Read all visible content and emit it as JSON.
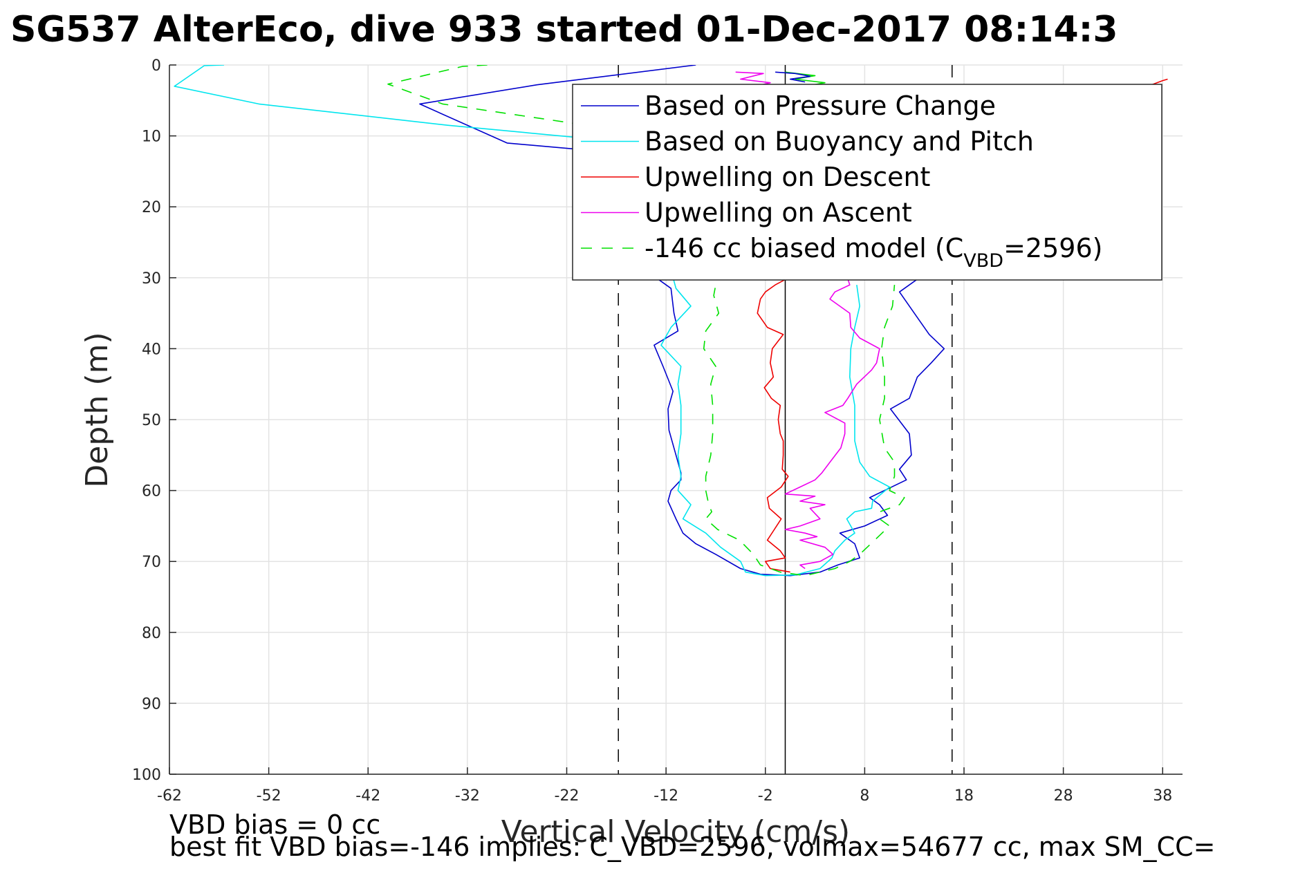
{
  "chart_data": {
    "type": "line",
    "title": "SG537 AlterEco, dive 933 started 01-Dec-2017 08:14:3",
    "xlabel": "Vertical Velocity (cm/s)",
    "ylabel": "Depth (m)",
    "xlim": [
      -62,
      40
    ],
    "ylim": [
      0,
      100
    ],
    "y_reversed": true,
    "xticks": [
      -62,
      -52,
      -42,
      -32,
      -22,
      -12,
      -2,
      8,
      18,
      28,
      38
    ],
    "yticks": [
      0,
      10,
      20,
      30,
      40,
      50,
      60,
      70,
      80,
      90,
      100
    ],
    "grid": true,
    "legend_position": "top-right",
    "zero_line_x": 0,
    "vertical_dashed_lines_x": [
      -16.8,
      16.8
    ],
    "legend": [
      {
        "label": "Based on Pressure Change",
        "color": "#0000cc",
        "style": "solid"
      },
      {
        "label": "Based on Buoyancy and Pitch",
        "color": "#00e5ee",
        "style": "solid"
      },
      {
        "label": "Upwelling on Descent",
        "color": "#ee0000",
        "style": "solid"
      },
      {
        "label": "Upwelling on Ascent",
        "color": "#ee00ee",
        "style": "solid"
      },
      {
        "label": "-146 cc biased model (C",
        "label_sub": "VBD",
        "label_tail": "=2596)",
        "color": "#00e000",
        "style": "dashed"
      }
    ],
    "series": [
      {
        "name": "Based on Pressure Change",
        "color": "#0000cc",
        "dash": "",
        "points": [
          [
            -9,
            0
          ],
          [
            -25,
            2.8
          ],
          [
            -36.8,
            5.5
          ],
          [
            -28,
            11
          ],
          [
            -20,
            12
          ],
          [
            -13,
            30
          ],
          [
            -11.5,
            31.5
          ],
          [
            -11.2,
            35
          ],
          [
            -10.8,
            37.5
          ],
          [
            -13.2,
            39.5
          ],
          [
            -12.3,
            42.5
          ],
          [
            -11.3,
            46
          ],
          [
            -11.8,
            48.5
          ],
          [
            -11.7,
            51.5
          ],
          [
            -11,
            55
          ],
          [
            -10.5,
            57.5
          ],
          [
            -10.5,
            58.5
          ],
          [
            -11.5,
            60
          ],
          [
            -11.8,
            61.5
          ],
          [
            -11,
            64
          ],
          [
            -10.3,
            66
          ],
          [
            -9,
            67.5
          ],
          [
            -7,
            69
          ],
          [
            -4.5,
            71
          ],
          [
            -2.5,
            71.8
          ],
          [
            0.5,
            72
          ],
          [
            3.5,
            71.5
          ],
          [
            5.3,
            70.5
          ],
          [
            7.5,
            69.5
          ],
          [
            7,
            67.5
          ],
          [
            5.5,
            66
          ],
          [
            8,
            65
          ],
          [
            10.3,
            63.5
          ],
          [
            9.5,
            62
          ],
          [
            8.5,
            61
          ],
          [
            12.2,
            58.5
          ],
          [
            11.5,
            57
          ],
          [
            12.7,
            55
          ],
          [
            12.5,
            52
          ],
          [
            10.6,
            48.5
          ],
          [
            12.5,
            47
          ],
          [
            13.3,
            44
          ],
          [
            14.7,
            42
          ],
          [
            16,
            40
          ],
          [
            14.5,
            38
          ],
          [
            13.5,
            36
          ],
          [
            12.5,
            34
          ],
          [
            11.5,
            32
          ],
          [
            13.5,
            30
          ]
        ]
      },
      {
        "name": "Based on Buoyancy and Pitch",
        "color": "#00e5ee",
        "dash": "",
        "points": [
          [
            -56.5,
            0
          ],
          [
            -58.5,
            0.1
          ],
          [
            -61.5,
            3
          ],
          [
            -53,
            5.5
          ],
          [
            -34,
            8.5
          ],
          [
            -15,
            11
          ],
          [
            -11,
            31.5
          ],
          [
            -9.5,
            34
          ],
          [
            -11.5,
            37
          ],
          [
            -12.5,
            39.5
          ],
          [
            -10.5,
            42.5
          ],
          [
            -10.8,
            45
          ],
          [
            -10.5,
            48
          ],
          [
            -10.5,
            52
          ],
          [
            -10.8,
            55
          ],
          [
            -10.5,
            58
          ],
          [
            -10.8,
            60
          ],
          [
            -9.5,
            62
          ],
          [
            -10.3,
            64
          ],
          [
            -8,
            66
          ],
          [
            -6.5,
            68
          ],
          [
            -4.5,
            70
          ],
          [
            -4,
            71.5
          ],
          [
            -2,
            72
          ],
          [
            1,
            71.9
          ],
          [
            3.5,
            71
          ],
          [
            4.7,
            69.5
          ],
          [
            5,
            68.5
          ],
          [
            6,
            67
          ],
          [
            7,
            66
          ],
          [
            6.2,
            64
          ],
          [
            7,
            63
          ],
          [
            8.7,
            62.5
          ],
          [
            8.8,
            61.5
          ],
          [
            10.5,
            59.5
          ],
          [
            8.5,
            58
          ],
          [
            7.5,
            56
          ],
          [
            7,
            53
          ],
          [
            7,
            48
          ],
          [
            6.5,
            44
          ],
          [
            6.6,
            40
          ],
          [
            7,
            37
          ],
          [
            7.5,
            34
          ],
          [
            7.2,
            31
          ]
        ]
      },
      {
        "name": "Upwelling on Descent",
        "color": "#ee0000",
        "dash": "",
        "points": [
          [
            38.5,
            2
          ],
          [
            38,
            2.2
          ],
          [
            36.5,
            3
          ],
          [
            -1,
            31
          ],
          [
            -2,
            32
          ],
          [
            -2.5,
            33
          ],
          [
            -2.8,
            35
          ],
          [
            -1.8,
            37
          ],
          [
            -0.2,
            38
          ],
          [
            -1.3,
            40
          ],
          [
            -1.5,
            42
          ],
          [
            -1.2,
            44
          ],
          [
            -2.1,
            45.5
          ],
          [
            -1.4,
            47
          ],
          [
            -0.5,
            48
          ],
          [
            -0.7,
            50
          ],
          [
            -0.5,
            52
          ],
          [
            -0.2,
            53
          ],
          [
            -0.2,
            55
          ],
          [
            -0.3,
            57
          ],
          [
            0.3,
            58
          ],
          [
            -0.4,
            59.5
          ],
          [
            -1.8,
            61
          ],
          [
            -1.6,
            62.5
          ],
          [
            -0.4,
            64
          ],
          [
            -1.1,
            65.5
          ],
          [
            -1.8,
            67
          ],
          [
            -0.5,
            68.5
          ],
          [
            0,
            69.5
          ],
          [
            -2,
            70
          ],
          [
            -1.5,
            71
          ],
          [
            0.5,
            71.5
          ]
        ]
      },
      {
        "name": "Upwelling on Ascent",
        "color": "#ee00ee",
        "dash": "",
        "points": [
          [
            -5,
            1
          ],
          [
            -2.2,
            1.2
          ],
          [
            -4.5,
            2
          ],
          [
            -1.5,
            2.5
          ],
          [
            -3,
            3
          ],
          [
            0,
            3.2
          ],
          [
            6.5,
            31
          ],
          [
            5,
            32
          ],
          [
            4.5,
            33
          ],
          [
            6.5,
            35
          ],
          [
            6.6,
            37
          ],
          [
            7.5,
            38.5
          ],
          [
            9.5,
            40
          ],
          [
            9.2,
            42
          ],
          [
            8.7,
            43
          ],
          [
            7.2,
            45
          ],
          [
            6.3,
            47
          ],
          [
            5.8,
            48
          ],
          [
            4,
            49
          ],
          [
            6,
            50.5
          ],
          [
            6,
            52
          ],
          [
            5.6,
            54
          ],
          [
            4.5,
            56
          ],
          [
            3.7,
            57.5
          ],
          [
            3,
            58.5
          ],
          [
            1.5,
            59.5
          ],
          [
            0,
            60.5
          ],
          [
            3,
            60.8
          ],
          [
            1.5,
            61.5
          ],
          [
            4,
            62
          ],
          [
            2.5,
            62.5
          ],
          [
            3.5,
            64
          ],
          [
            1.5,
            65
          ],
          [
            0,
            65.5
          ],
          [
            2,
            66
          ],
          [
            3.2,
            66.5
          ],
          [
            1.5,
            67
          ],
          [
            4,
            68
          ],
          [
            4.8,
            69
          ],
          [
            3.5,
            70
          ],
          [
            1.5,
            70.5
          ],
          [
            2,
            71
          ]
        ]
      },
      {
        "name": "-146 cc biased model",
        "color": "#00e000",
        "dash": "15 13",
        "points": [
          [
            -30,
            0
          ],
          [
            -32.5,
            0.2
          ],
          [
            -40,
            2.7
          ],
          [
            -34.5,
            5.5
          ],
          [
            -20,
            8.5
          ],
          [
            -12.5,
            10
          ],
          [
            -7,
            31
          ],
          [
            -7.2,
            32.5
          ],
          [
            -6.7,
            35
          ],
          [
            -8,
            37.5
          ],
          [
            -8.2,
            40
          ],
          [
            -7,
            42.5
          ],
          [
            -7.5,
            45
          ],
          [
            -7.3,
            48
          ],
          [
            -7.3,
            52
          ],
          [
            -7.5,
            55
          ],
          [
            -8,
            58
          ],
          [
            -8,
            60
          ],
          [
            -7.7,
            62
          ],
          [
            -7.4,
            63
          ],
          [
            -8,
            64
          ],
          [
            -6.8,
            65.5
          ],
          [
            -4.6,
            67
          ],
          [
            -3.2,
            69
          ],
          [
            -2.5,
            70.5
          ],
          [
            -0.5,
            71.5
          ],
          [
            2,
            72
          ],
          [
            5,
            71
          ],
          [
            6.5,
            70
          ],
          [
            7.5,
            69
          ],
          [
            9,
            67
          ],
          [
            10.5,
            65
          ],
          [
            9.5,
            64
          ],
          [
            9.5,
            63
          ],
          [
            11.5,
            62
          ],
          [
            12,
            61
          ],
          [
            10.5,
            60
          ],
          [
            11,
            58
          ],
          [
            11,
            56
          ],
          [
            10,
            54
          ],
          [
            9.5,
            50
          ],
          [
            10,
            47
          ],
          [
            10,
            44
          ],
          [
            9.7,
            40
          ],
          [
            10,
            37
          ],
          [
            10.8,
            34
          ],
          [
            11,
            31
          ]
        ]
      },
      {
        "name": "near-surface green",
        "color": "#00e000",
        "dash": "",
        "points": [
          [
            0,
            1
          ],
          [
            3,
            1.5
          ],
          [
            1,
            2
          ],
          [
            4,
            2.5
          ],
          [
            2,
            3
          ],
          [
            5,
            3
          ],
          [
            1,
            3.5
          ],
          [
            6,
            3.5
          ],
          [
            3,
            4
          ]
        ]
      },
      {
        "name": "near-surface blue",
        "color": "#0000cc",
        "dash": "",
        "points": [
          [
            -1,
            1
          ],
          [
            1,
            1.2
          ],
          [
            2.5,
            1.6
          ],
          [
            0.5,
            2
          ],
          [
            2,
            2.4
          ]
        ]
      }
    ]
  },
  "notes": {
    "line1": "VBD bias = 0 cc",
    "line2": "best fit VBD bias=-146 implies: C_VBD=2596, volmax=54677 cc, max SM_CC="
  }
}
